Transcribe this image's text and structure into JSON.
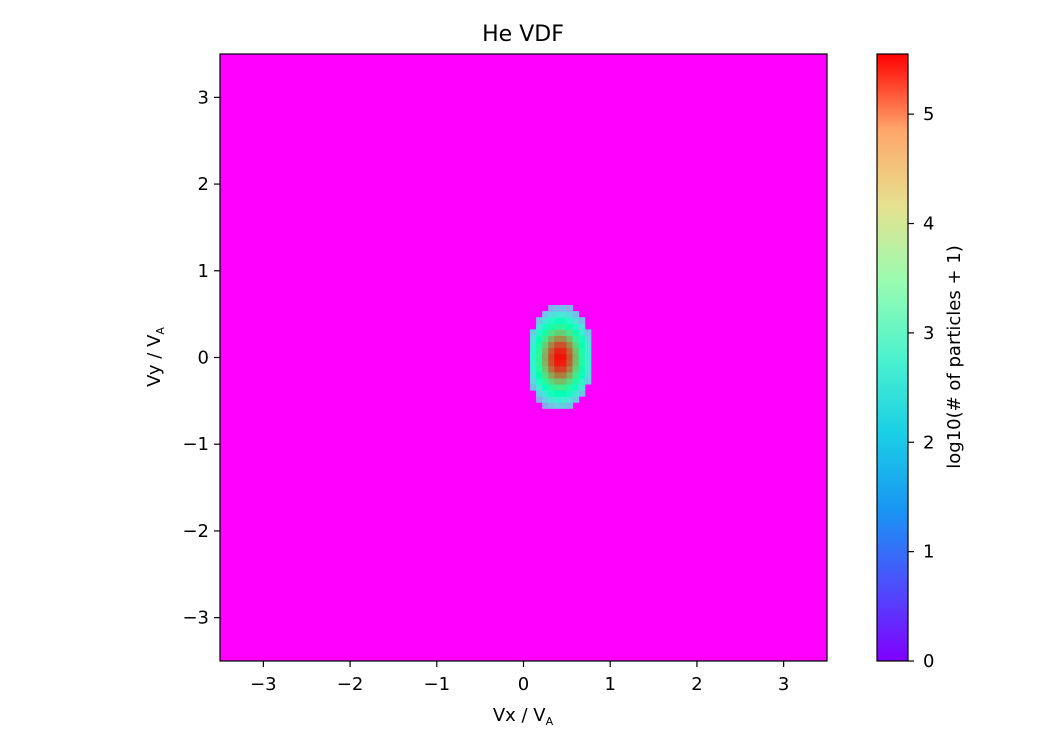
{
  "chart_data": {
    "type": "heatmap",
    "title": "He VDF",
    "xlabel": {
      "base": "Vx / V",
      "subscript": "A"
    },
    "ylabel": {
      "base": "Vy / V",
      "subscript": "A"
    },
    "xlim": [
      -3.5,
      3.5
    ],
    "ylim": [
      -3.5,
      3.5
    ],
    "x_ticks": [
      -3,
      -2,
      -1,
      0,
      1,
      2,
      3
    ],
    "x_tick_labels": [
      "−3",
      "−2",
      "−1",
      "0",
      "1",
      "2",
      "3"
    ],
    "y_ticks": [
      -3,
      -2,
      -1,
      0,
      1,
      2,
      3
    ],
    "y_tick_labels": [
      "−3",
      "−2",
      "−1",
      "0",
      "1",
      "2",
      "3"
    ],
    "colormap": "rainbow",
    "background_value": 0,
    "distribution": {
      "center_x": 0.42,
      "center_y": 0.0,
      "sigma_x": 0.1,
      "sigma_y": 0.15,
      "peak_value": 5.5,
      "support_x_half_width": 0.38,
      "support_y_half_width": 0.62
    },
    "grid": false,
    "colorbar": {
      "label": "log10(# of particles + 1)",
      "min": 0,
      "max": 5.55,
      "ticks": [
        0,
        1,
        2,
        3,
        4,
        5
      ],
      "tick_labels": [
        "0",
        "1",
        "2",
        "3",
        "4",
        "5"
      ]
    }
  }
}
